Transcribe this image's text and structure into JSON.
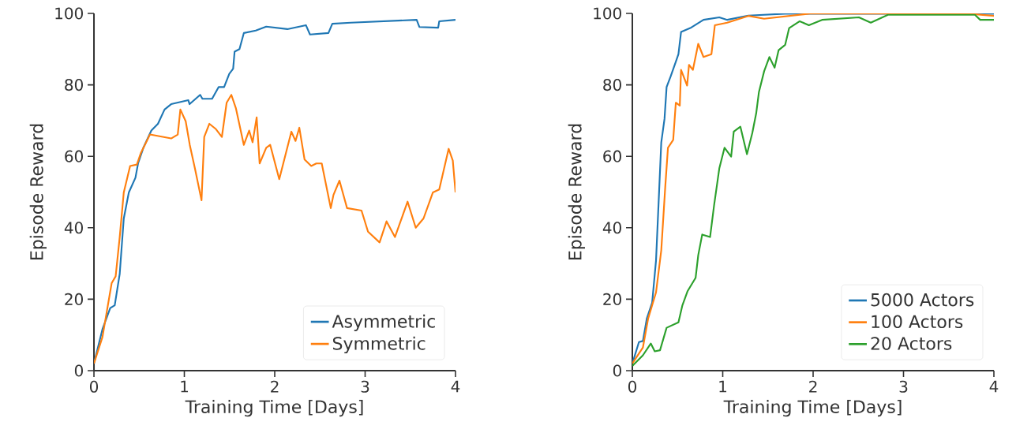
{
  "chart_data": [
    {
      "type": "line",
      "xlabel": "Training Time [Days]",
      "ylabel": "Episode Reward",
      "xlim": [
        0,
        4
      ],
      "ylim": [
        0,
        100
      ],
      "xticks": [
        0,
        1,
        2,
        3,
        4
      ],
      "yticks": [
        0,
        20,
        40,
        60,
        80,
        100
      ],
      "legend": "bottom right",
      "grid": false,
      "series": [
        {
          "name": "Asymmetric",
          "color": "#1f77b4",
          "x": [
            0,
            0.094,
            0.18,
            0.23,
            0.285,
            0.33,
            0.386,
            0.459,
            0.488,
            0.547,
            0.635,
            0.708,
            0.781,
            0.854,
            1.044,
            1.058,
            1.175,
            1.2,
            1.307,
            1.38,
            1.44,
            1.497,
            1.54,
            1.556,
            1.61,
            1.658,
            1.79,
            1.906,
            2.14,
            2.345,
            2.39,
            2.594,
            2.637,
            2.842,
            3.57,
            3.6,
            3.808,
            3.82,
            4
          ],
          "values": [
            2,
            11.6,
            17.5,
            18.3,
            27.1,
            42.6,
            49.9,
            54,
            58,
            62.4,
            67.2,
            69.1,
            73.1,
            74.6,
            75.7,
            74.6,
            77.2,
            76.1,
            76.1,
            79.4,
            79.4,
            83.1,
            84.5,
            89.3,
            90,
            94.5,
            95.2,
            96.3,
            95.6,
            96.7,
            94.1,
            94.5,
            97.1,
            97.4,
            98.2,
            96.2,
            96,
            97.8,
            98.2
          ]
        },
        {
          "name": "Symmetric",
          "color": "#ff7f0e",
          "x": [
            0,
            0.094,
            0.196,
            0.24,
            0.285,
            0.33,
            0.4,
            0.475,
            0.52,
            0.62,
            0.854,
            0.927,
            0.956,
            1.015,
            1.06,
            1.117,
            1.19,
            1.22,
            1.277,
            1.35,
            1.415,
            1.468,
            1.52,
            1.57,
            1.658,
            1.717,
            1.755,
            1.8,
            1.833,
            1.906,
            1.95,
            2.05,
            2.184,
            2.23,
            2.272,
            2.33,
            2.404,
            2.46,
            2.52,
            2.62,
            2.65,
            2.716,
            2.8,
            2.96,
            3.032,
            3.16,
            3.237,
            3.33,
            3.47,
            3.56,
            3.646,
            3.75,
            3.82,
            3.924,
            3.97,
            4
          ],
          "values": [
            2,
            9.4,
            24.5,
            26.4,
            37.4,
            49.9,
            57.3,
            57.7,
            61,
            66.1,
            65,
            66.1,
            73.1,
            69.8,
            63.2,
            56.6,
            47.7,
            65.4,
            69.1,
            67.6,
            65.4,
            75,
            77.2,
            73.5,
            63.2,
            67.2,
            63.9,
            70.9,
            58,
            62.4,
            63.2,
            53.6,
            66.9,
            64.3,
            68,
            59.1,
            57.3,
            58,
            58,
            45.5,
            49.2,
            53.2,
            45.5,
            44.8,
            38.9,
            35.9,
            41.8,
            37.4,
            47.3,
            40,
            42.6,
            49.9,
            50.7,
            62.1,
            58.8,
            49.9
          ]
        }
      ]
    },
    {
      "type": "line",
      "xlabel": "Training Time [Days]",
      "ylabel": "Episode Reward",
      "xlim": [
        0,
        4
      ],
      "ylim": [
        0,
        100
      ],
      "xticks": [
        0,
        1,
        2,
        3,
        4
      ],
      "yticks": [
        0,
        20,
        40,
        60,
        80,
        100
      ],
      "legend": "bottom right",
      "grid": false,
      "series": [
        {
          "name": "5000 Actors",
          "color": "#1f77b4",
          "x": [
            0,
            0.073,
            0.117,
            0.16,
            0.219,
            0.262,
            0.297,
            0.32,
            0.356,
            0.379,
            0.423,
            0.48,
            0.51,
            0.539,
            0.641,
            0.787,
            0.962,
            1.05,
            1.283,
            1.69,
            4
          ],
          "values": [
            2,
            8,
            8.3,
            14.6,
            19,
            30.8,
            50.7,
            63.9,
            70.5,
            79.4,
            82.3,
            86.4,
            88.6,
            94.8,
            95.9,
            98.2,
            98.9,
            98.2,
            99.4,
            99.9,
            99.9
          ]
        },
        {
          "name": "100 Actors",
          "color": "#ff7f0e",
          "x": [
            0,
            0.117,
            0.175,
            0.262,
            0.32,
            0.364,
            0.394,
            0.452,
            0.481,
            0.525,
            0.539,
            0.606,
            0.627,
            0.67,
            0.729,
            0.787,
            0.875,
            0.913,
            1.05,
            1.283,
            1.458,
            1.983,
            3.73,
            4
          ],
          "values": [
            2,
            6.5,
            14.6,
            21.9,
            33.7,
            51.4,
            62.4,
            64.6,
            75,
            74.2,
            84.2,
            79.8,
            85.6,
            84.2,
            91.5,
            87.8,
            88.6,
            96.7,
            97.4,
            99.3,
            98.5,
            100,
            99.9,
            99.3
          ]
        },
        {
          "name": "20 Actors",
          "color": "#2ca02c",
          "x": [
            0,
            0.117,
            0.204,
            0.248,
            0.306,
            0.379,
            0.51,
            0.554,
            0.612,
            0.7,
            0.729,
            0.773,
            0.86,
            0.904,
            0.962,
            1.02,
            1.093,
            1.122,
            1.195,
            1.268,
            1.327,
            1.37,
            1.4,
            1.458,
            1.516,
            1.574,
            1.618,
            1.691,
            1.735,
            1.852,
            1.953,
            2.099,
            2.507,
            2.638,
            2.828,
            3.79,
            3.848,
            4
          ],
          "values": [
            1.3,
            4.3,
            7.6,
            5.4,
            5.7,
            12,
            13.5,
            18.3,
            22.3,
            26,
            32.3,
            38.1,
            37.4,
            46.2,
            56.6,
            62.4,
            59.9,
            66.9,
            68.3,
            60.6,
            66.5,
            72,
            77.9,
            83.8,
            87.8,
            84.8,
            89.7,
            91.2,
            95.9,
            97.8,
            96.7,
            98.2,
            98.9,
            97.4,
            99.6,
            99.6,
            98.2,
            98.2
          ]
        }
      ]
    }
  ]
}
